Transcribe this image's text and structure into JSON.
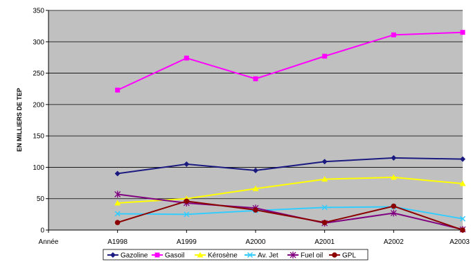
{
  "chart_data": {
    "type": "line",
    "title": "",
    "xlabel": "",
    "ylabel": "EN MILLIERS DE TEP",
    "ylim": [
      0,
      350
    ],
    "yticks": [
      0,
      50,
      100,
      150,
      200,
      250,
      300,
      350
    ],
    "grid": true,
    "legend_position": "bottom",
    "categories": [
      "Année",
      "A1998",
      "A1999",
      "A2000",
      "A2001",
      "A2002",
      "A2003"
    ],
    "series": [
      {
        "name": "Gazoline",
        "color": "#1a1a80",
        "marker": "diamond",
        "values": [
          null,
          90,
          105,
          95,
          109,
          115,
          113
        ]
      },
      {
        "name": "Gasoil",
        "color": "#ff00ff",
        "marker": "square",
        "values": [
          null,
          223,
          274,
          241,
          277,
          311,
          315
        ]
      },
      {
        "name": "Kérosène",
        "color": "#ffff00",
        "marker": "triangle",
        "values": [
          null,
          43,
          50,
          66,
          81,
          84,
          74
        ]
      },
      {
        "name": "Av. Jet",
        "color": "#33ccff",
        "marker": "x",
        "values": [
          null,
          26,
          25,
          31,
          36,
          37,
          18
        ]
      },
      {
        "name": "Fuel oil",
        "color": "#800080",
        "marker": "star",
        "values": [
          null,
          57,
          43,
          35,
          11,
          27,
          1
        ]
      },
      {
        "name": "GPL",
        "color": "#8b0000",
        "marker": "circle",
        "values": [
          null,
          12,
          46,
          32,
          12,
          38,
          0
        ]
      }
    ]
  }
}
